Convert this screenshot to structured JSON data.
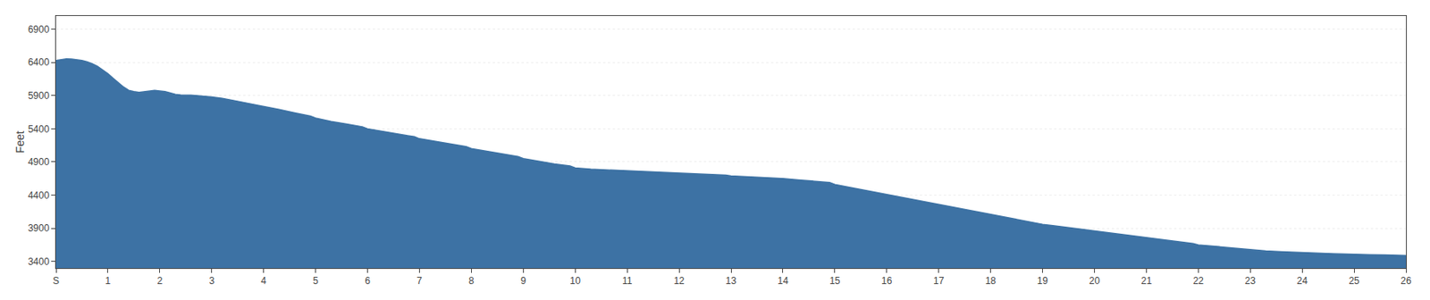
{
  "chart_data": {
    "type": "area",
    "ylabel": "Feet",
    "color": "#3d72a4",
    "grid": "y",
    "xlim": [
      0,
      26
    ],
    "xticks": [
      {
        "value": 0,
        "label": "S"
      },
      1,
      2,
      3,
      4,
      5,
      6,
      7,
      8,
      9,
      10,
      11,
      12,
      13,
      14,
      15,
      16,
      17,
      18,
      19,
      20,
      21,
      22,
      23,
      24,
      25,
      26
    ],
    "ylim": [
      3300,
      7100
    ],
    "yticks": [
      3400,
      3900,
      4400,
      4900,
      5400,
      5900,
      6400,
      6900
    ],
    "x": [
      0,
      0.1,
      0.2,
      0.3,
      0.4,
      0.5,
      0.6,
      0.7,
      0.8,
      0.9,
      1.0,
      1.1,
      1.2,
      1.3,
      1.4,
      1.5,
      1.6,
      1.7,
      1.8,
      1.9,
      2.0,
      2.1,
      2.2,
      2.3,
      2.4,
      2.5,
      2.6,
      2.7,
      2.8,
      2.9,
      3.0,
      3.2,
      3.4,
      3.6,
      3.8,
      4.0,
      4.3,
      4.6,
      4.9,
      5.0,
      5.3,
      5.6,
      5.9,
      6.0,
      6.3,
      6.6,
      6.9,
      7.0,
      7.3,
      7.6,
      7.9,
      8.0,
      8.3,
      8.6,
      8.9,
      9.0,
      9.3,
      9.6,
      9.9,
      10.0,
      10.3,
      10.6,
      10.9,
      11.0,
      11.3,
      11.6,
      11.9,
      12.0,
      12.3,
      12.6,
      12.9,
      13.0,
      13.3,
      13.6,
      13.9,
      14.0,
      14.3,
      14.6,
      14.9,
      15.0,
      15.2,
      15.4,
      15.6,
      15.8,
      16.0,
      16.2,
      16.4,
      16.6,
      16.8,
      17.0,
      17.2,
      17.4,
      17.6,
      17.8,
      18.0,
      18.2,
      18.4,
      18.6,
      18.8,
      19.0,
      19.2,
      19.4,
      19.6,
      19.8,
      20.0,
      20.2,
      20.4,
      20.6,
      20.8,
      21.0,
      21.3,
      21.6,
      21.9,
      22.0,
      22.3,
      22.6,
      22.9,
      23.0,
      23.3,
      23.6,
      23.9,
      24.0,
      24.3,
      24.6,
      24.9,
      25.0,
      25.3,
      25.6,
      25.9,
      26.0
    ],
    "values": [
      6430,
      6445,
      6455,
      6450,
      6440,
      6430,
      6410,
      6380,
      6340,
      6290,
      6230,
      6160,
      6090,
      6030,
      5980,
      5960,
      5950,
      5960,
      5970,
      5980,
      5970,
      5960,
      5940,
      5920,
      5910,
      5910,
      5905,
      5900,
      5895,
      5890,
      5880,
      5860,
      5830,
      5800,
      5770,
      5740,
      5690,
      5640,
      5590,
      5560,
      5510,
      5470,
      5430,
      5400,
      5360,
      5320,
      5280,
      5250,
      5210,
      5170,
      5130,
      5100,
      5060,
      5020,
      4980,
      4950,
      4910,
      4870,
      4840,
      4810,
      4790,
      4780,
      4775,
      4770,
      4760,
      4750,
      4740,
      4730,
      4720,
      4710,
      4700,
      4690,
      4680,
      4670,
      4660,
      4650,
      4630,
      4610,
      4590,
      4560,
      4530,
      4500,
      4470,
      4440,
      4410,
      4380,
      4350,
      4320,
      4290,
      4260,
      4230,
      4200,
      4170,
      4140,
      4110,
      4080,
      4050,
      4020,
      3990,
      3960,
      3940,
      3920,
      3900,
      3880,
      3860,
      3840,
      3820,
      3800,
      3780,
      3760,
      3730,
      3700,
      3670,
      3650,
      3630,
      3610,
      3590,
      3575,
      3560,
      3548,
      3538,
      3530,
      3522,
      3516,
      3510,
      3506,
      3502,
      3498,
      3494,
      3490
    ]
  }
}
